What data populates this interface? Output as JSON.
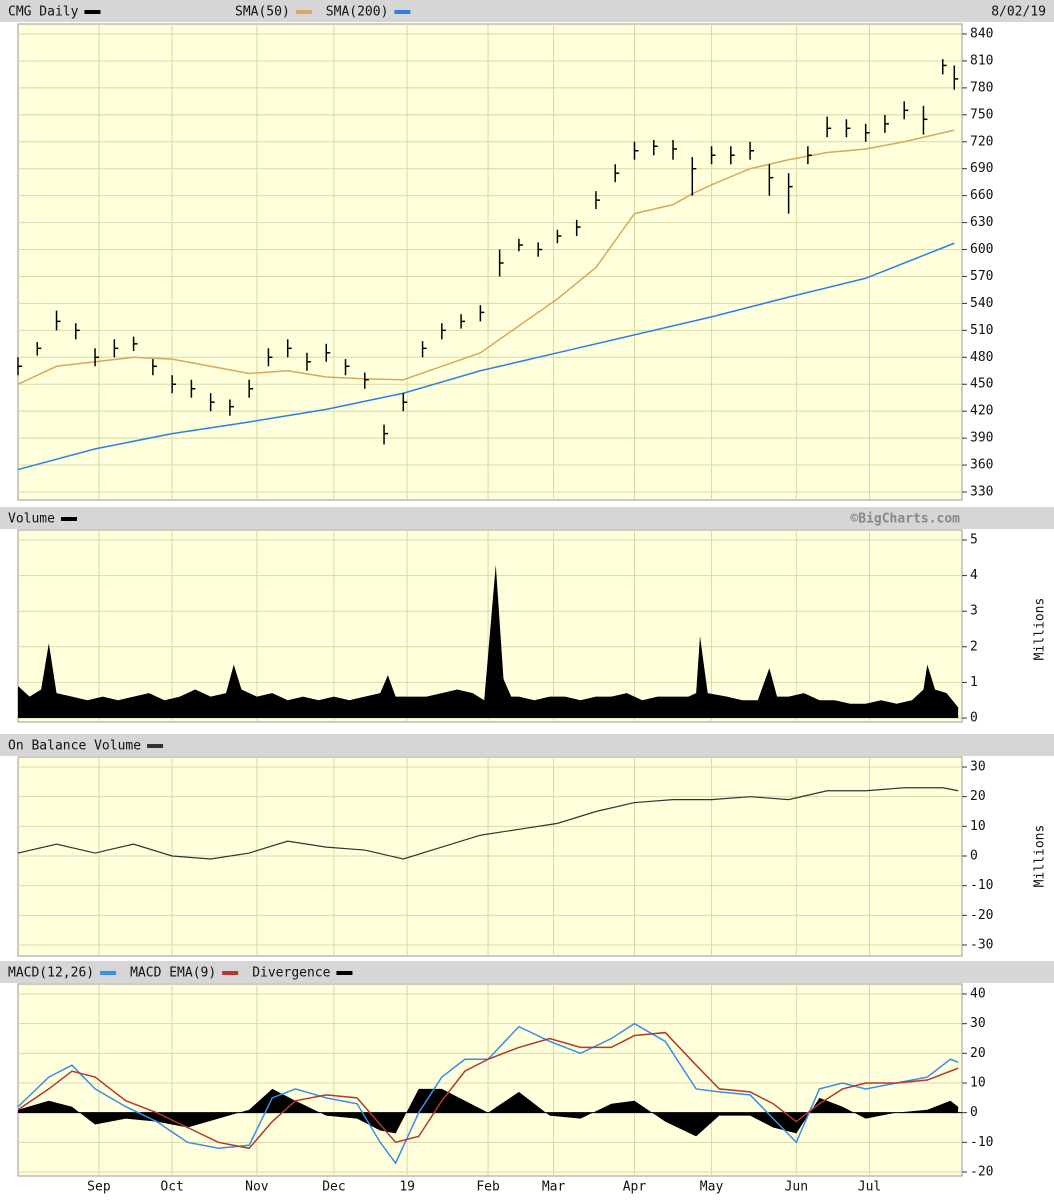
{
  "chart_data": [
    {
      "type": "ohlc",
      "title": "CMG Daily",
      "date": "8/02/19",
      "color": "#000000",
      "x": [
        0,
        5,
        10,
        15,
        20,
        25,
        30,
        35,
        40,
        45,
        50,
        55,
        60,
        65,
        70,
        75,
        80,
        85,
        90,
        95,
        100,
        105,
        110,
        115,
        120,
        125,
        130,
        135,
        140,
        145,
        150,
        155,
        160,
        165,
        170,
        175,
        180,
        185,
        190,
        195,
        200,
        205,
        210,
        215,
        220,
        225,
        230,
        235,
        240,
        243
      ],
      "high": [
        480,
        497,
        532,
        518,
        490,
        500,
        503,
        478,
        460,
        455,
        440,
        433,
        455,
        490,
        500,
        485,
        495,
        478,
        463,
        405,
        440,
        498,
        518,
        528,
        538,
        600,
        612,
        608,
        622,
        633,
        665,
        695,
        720,
        722,
        722,
        703,
        715,
        715,
        720,
        695,
        685,
        715,
        748,
        745,
        740,
        750,
        765,
        760,
        812,
        805
      ],
      "low": [
        460,
        482,
        510,
        500,
        470,
        480,
        487,
        460,
        440,
        435,
        420,
        415,
        435,
        470,
        480,
        465,
        475,
        460,
        445,
        383,
        420,
        480,
        500,
        512,
        520,
        570,
        598,
        592,
        607,
        615,
        645,
        675,
        700,
        705,
        700,
        660,
        695,
        695,
        700,
        660,
        640,
        695,
        725,
        725,
        720,
        730,
        745,
        728,
        795,
        778
      ],
      "close": [
        470,
        490,
        520,
        510,
        480,
        490,
        495,
        470,
        450,
        445,
        430,
        425,
        445,
        480,
        490,
        475,
        485,
        470,
        455,
        395,
        430,
        490,
        510,
        520,
        530,
        585,
        605,
        600,
        615,
        625,
        655,
        685,
        710,
        715,
        712,
        690,
        705,
        705,
        710,
        680,
        670,
        705,
        735,
        735,
        730,
        740,
        755,
        745,
        805,
        790
      ],
      "series": [
        {
          "name": "SMA(50)",
          "color": "#d9a85b",
          "x": [
            0,
            10,
            20,
            30,
            40,
            50,
            60,
            70,
            80,
            90,
            100,
            110,
            120,
            130,
            140,
            150,
            160,
            170,
            175,
            180,
            190,
            200,
            210,
            220,
            230,
            243
          ],
          "values": [
            450,
            470,
            475,
            480,
            478,
            470,
            462,
            465,
            458,
            456,
            455,
            470,
            485,
            515,
            545,
            580,
            640,
            650,
            662,
            672,
            690,
            700,
            708,
            712,
            720,
            733
          ]
        },
        {
          "name": "SMA(200)",
          "color": "#2f7fe0",
          "x": [
            0,
            20,
            40,
            60,
            80,
            100,
            120,
            140,
            160,
            180,
            200,
            220,
            243
          ],
          "values": [
            355,
            378,
            395,
            408,
            422,
            440,
            465,
            485,
            505,
            525,
            547,
            568,
            607
          ]
        }
      ],
      "ylim": [
        330,
        840
      ],
      "yticks": [
        330,
        360,
        390,
        420,
        450,
        480,
        510,
        540,
        570,
        600,
        630,
        660,
        690,
        720,
        750,
        780,
        810,
        840
      ],
      "grid": true
    },
    {
      "type": "area",
      "title": "Volume",
      "credit": "©BigCharts.com",
      "ylabel": "Millions",
      "color": "#000000",
      "x": [
        0,
        3,
        6,
        8,
        10,
        14,
        18,
        22,
        26,
        30,
        34,
        38,
        42,
        46,
        50,
        54,
        56,
        58,
        62,
        66,
        70,
        74,
        78,
        82,
        86,
        90,
        94,
        96,
        98,
        102,
        106,
        110,
        114,
        118,
        121,
        124,
        126,
        128,
        130,
        134,
        138,
        142,
        146,
        150,
        154,
        158,
        162,
        166,
        170,
        174,
        176,
        177,
        179,
        184,
        188,
        192,
        195,
        197,
        200,
        204,
        208,
        212,
        216,
        220,
        224,
        228,
        232,
        235,
        236,
        238,
        241,
        244
      ],
      "values": [
        0.9,
        0.6,
        0.8,
        2.1,
        0.7,
        0.6,
        0.5,
        0.6,
        0.5,
        0.6,
        0.7,
        0.5,
        0.6,
        0.8,
        0.6,
        0.7,
        1.5,
        0.8,
        0.6,
        0.7,
        0.5,
        0.6,
        0.5,
        0.6,
        0.5,
        0.6,
        0.7,
        1.2,
        0.6,
        0.6,
        0.6,
        0.7,
        0.8,
        0.7,
        0.5,
        4.3,
        1.1,
        0.6,
        0.6,
        0.5,
        0.6,
        0.6,
        0.5,
        0.6,
        0.6,
        0.7,
        0.5,
        0.6,
        0.6,
        0.6,
        0.7,
        2.3,
        0.7,
        0.6,
        0.5,
        0.5,
        1.4,
        0.6,
        0.6,
        0.7,
        0.5,
        0.5,
        0.4,
        0.4,
        0.5,
        0.4,
        0.5,
        0.8,
        1.5,
        0.8,
        0.7,
        0.3
      ],
      "ylim": [
        0,
        5
      ],
      "yticks": [
        0,
        1,
        2,
        3,
        4,
        5
      ],
      "grid": true
    },
    {
      "type": "line",
      "title": "On Balance Volume",
      "ylabel": "Millions",
      "color": "#333333",
      "x": [
        0,
        10,
        20,
        30,
        40,
        50,
        60,
        70,
        80,
        90,
        100,
        110,
        120,
        130,
        140,
        150,
        160,
        170,
        180,
        190,
        200,
        210,
        220,
        230,
        240,
        244
      ],
      "values": [
        1,
        4,
        1,
        4,
        0,
        -1,
        1,
        5,
        3,
        2,
        -1,
        3,
        7,
        9,
        11,
        15,
        18,
        19,
        19,
        20,
        19,
        22,
        22,
        23,
        23,
        22
      ],
      "ylim": [
        -30,
        30
      ],
      "yticks": [
        -30,
        -20,
        -10,
        0,
        10,
        20,
        30
      ],
      "grid": true
    },
    {
      "type": "macd",
      "x": [
        0,
        8,
        14,
        20,
        28,
        36,
        44,
        52,
        60,
        66,
        72,
        80,
        88,
        94,
        98,
        104,
        110,
        116,
        122,
        130,
        138,
        146,
        154,
        160,
        168,
        176,
        182,
        190,
        196,
        202,
        208,
        214,
        220,
        228,
        236,
        242,
        244
      ],
      "series": [
        {
          "name": "MACD(12,26)",
          "color": "#3a8ee6",
          "style": "line",
          "values": [
            2,
            12,
            16,
            8,
            2,
            -3,
            -10,
            -12,
            -11,
            5,
            8,
            5,
            3,
            -10,
            -17,
            0,
            12,
            18,
            18,
            29,
            24,
            20,
            25,
            30,
            24,
            8,
            7,
            6,
            -2,
            -10,
            8,
            10,
            8,
            10,
            12,
            18,
            17
          ]
        },
        {
          "name": "MACD EMA(9)",
          "color": "#b03a2e",
          "style": "line",
          "values": [
            1,
            8,
            14,
            12,
            4,
            0,
            -5,
            -10,
            -12,
            -3,
            4,
            6,
            5,
            -4,
            -10,
            -8,
            4,
            14,
            18,
            22,
            25,
            22,
            22,
            26,
            27,
            16,
            8,
            7,
            3,
            -3,
            3,
            8,
            10,
            10,
            11,
            14,
            15
          ]
        },
        {
          "name": "Divergence",
          "color": "#000000",
          "style": "area",
          "values": [
            1,
            4,
            2,
            -4,
            -2,
            -3,
            -5,
            -2,
            1,
            8,
            4,
            -1,
            -2,
            -6,
            -7,
            8,
            8,
            4,
            0,
            7,
            -1,
            -2,
            3,
            4,
            -3,
            -8,
            -1,
            -1,
            -5,
            -7,
            5,
            2,
            -2,
            0,
            1,
            4,
            2
          ]
        }
      ],
      "ylim": [
        -20,
        40
      ],
      "yticks": [
        -20,
        -10,
        0,
        10,
        20,
        30,
        40
      ],
      "grid": true,
      "xlim": [
        0,
        245
      ],
      "xticks": [
        {
          "value": 21,
          "label": "Sep"
        },
        {
          "value": 40,
          "label": "Oct"
        },
        {
          "value": 62,
          "label": "Nov"
        },
        {
          "value": 82,
          "label": "Dec"
        },
        {
          "value": 101,
          "label": "19"
        },
        {
          "value": 122,
          "label": "Feb"
        },
        {
          "value": 139,
          "label": "Mar"
        },
        {
          "value": 160,
          "label": "Apr"
        },
        {
          "value": 180,
          "label": "May"
        },
        {
          "value": 202,
          "label": "Jun"
        },
        {
          "value": 221,
          "label": "Jul"
        }
      ]
    }
  ]
}
